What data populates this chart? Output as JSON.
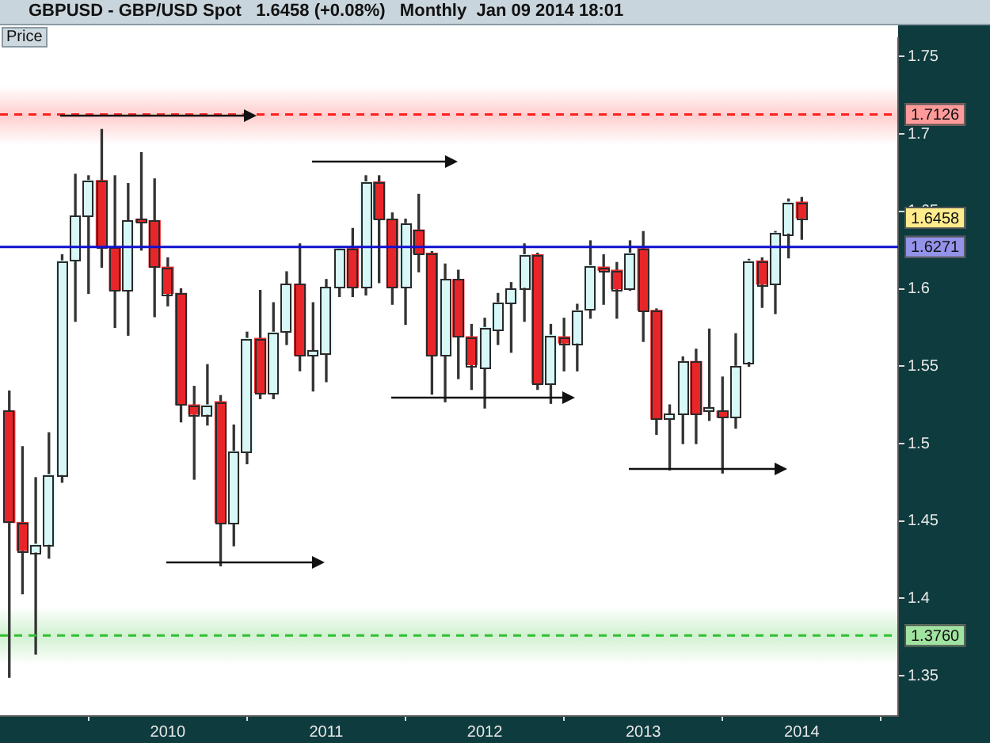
{
  "chart_data": {
    "type": "candlestick",
    "title": "GBPUSD - GBP/USD Spot",
    "subtitle": "1.6458 (+0.08%)   Monthly  Jan 09 2014 18:01",
    "x": [
      "2009-01",
      "2009-02",
      "2009-03",
      "2009-04",
      "2009-05",
      "2009-06",
      "2009-07",
      "2009-08",
      "2009-09",
      "2009-10",
      "2009-11",
      "2009-12",
      "2010-01",
      "2010-02",
      "2010-03",
      "2010-04",
      "2010-05",
      "2010-06",
      "2010-07",
      "2010-08",
      "2010-09",
      "2010-10",
      "2010-11",
      "2010-12",
      "2011-01",
      "2011-02",
      "2011-03",
      "2011-04",
      "2011-05",
      "2011-06",
      "2011-07",
      "2011-08",
      "2011-09",
      "2011-10",
      "2011-11",
      "2011-12",
      "2012-01",
      "2012-02",
      "2012-03",
      "2012-04",
      "2012-05",
      "2012-06",
      "2012-07",
      "2012-08",
      "2012-09",
      "2012-10",
      "2012-11",
      "2012-12",
      "2013-01",
      "2013-02",
      "2013-03",
      "2013-04",
      "2013-05",
      "2013-06",
      "2013-07",
      "2013-08",
      "2013-09",
      "2013-10",
      "2013-11",
      "2013-12",
      "2014-01"
    ],
    "ohlc": [
      [
        1.521,
        1.534,
        1.349,
        1.449
      ],
      [
        1.449,
        1.498,
        1.403,
        1.431
      ],
      [
        1.43,
        1.478,
        1.364,
        1.435
      ],
      [
        1.435,
        1.507,
        1.426,
        1.48
      ],
      [
        1.48,
        1.622,
        1.475,
        1.618
      ],
      [
        1.618,
        1.674,
        1.579,
        1.647
      ],
      [
        1.647,
        1.673,
        1.597,
        1.67
      ],
      [
        1.67,
        1.703,
        1.614,
        1.627
      ],
      [
        1.627,
        1.673,
        1.575,
        1.599
      ],
      [
        1.599,
        1.668,
        1.57,
        1.644
      ],
      [
        1.644,
        1.688,
        1.625,
        1.643
      ],
      [
        1.644,
        1.671,
        1.582,
        1.614
      ],
      [
        1.614,
        1.62,
        1.589,
        1.597
      ],
      [
        1.597,
        1.6,
        1.514,
        1.525
      ],
      [
        1.525,
        1.537,
        1.477,
        1.519
      ],
      [
        1.519,
        1.551,
        1.512,
        1.525
      ],
      [
        1.527,
        1.531,
        1.421,
        1.449
      ],
      [
        1.449,
        1.512,
        1.434,
        1.495
      ],
      [
        1.495,
        1.572,
        1.487,
        1.568
      ],
      [
        1.568,
        1.599,
        1.529,
        1.533
      ],
      [
        1.533,
        1.591,
        1.529,
        1.572
      ],
      [
        1.572,
        1.611,
        1.564,
        1.603
      ],
      [
        1.603,
        1.629,
        1.547,
        1.557
      ],
      [
        1.557,
        1.591,
        1.534,
        1.56
      ],
      [
        1.558,
        1.606,
        1.54,
        1.601
      ],
      [
        1.601,
        1.627,
        1.595,
        1.626
      ],
      [
        1.626,
        1.639,
        1.595,
        1.601
      ],
      [
        1.601,
        1.673,
        1.596,
        1.669
      ],
      [
        1.669,
        1.673,
        1.604,
        1.645
      ],
      [
        1.645,
        1.649,
        1.59,
        1.601
      ],
      [
        1.601,
        1.645,
        1.577,
        1.642
      ],
      [
        1.638,
        1.661,
        1.611,
        1.623
      ],
      [
        1.623,
        1.624,
        1.532,
        1.557
      ],
      [
        1.557,
        1.616,
        1.527,
        1.606
      ],
      [
        1.606,
        1.612,
        1.542,
        1.569
      ],
      [
        1.569,
        1.577,
        1.535,
        1.551
      ],
      [
        1.549,
        1.581,
        1.523,
        1.575
      ],
      [
        1.574,
        1.597,
        1.564,
        1.591
      ],
      [
        1.591,
        1.604,
        1.559,
        1.6
      ],
      [
        1.601,
        1.629,
        1.579,
        1.622
      ],
      [
        1.622,
        1.623,
        1.535,
        1.539
      ],
      [
        1.539,
        1.577,
        1.526,
        1.57
      ],
      [
        1.569,
        1.581,
        1.547,
        1.565
      ],
      [
        1.565,
        1.59,
        1.547,
        1.586
      ],
      [
        1.587,
        1.631,
        1.581,
        1.615
      ],
      [
        1.614,
        1.622,
        1.59,
        1.612
      ],
      [
        1.612,
        1.617,
        1.581,
        1.6
      ],
      [
        1.6,
        1.631,
        1.599,
        1.623
      ],
      [
        1.626,
        1.637,
        1.566,
        1.586
      ],
      [
        1.586,
        1.587,
        1.506,
        1.516
      ],
      [
        1.516,
        1.525,
        1.483,
        1.519
      ],
      [
        1.519,
        1.556,
        1.5,
        1.553
      ],
      [
        1.553,
        1.561,
        1.5,
        1.519
      ],
      [
        1.521,
        1.574,
        1.515,
        1.522
      ],
      [
        1.521,
        1.543,
        1.481,
        1.517
      ],
      [
        1.517,
        1.571,
        1.51,
        1.55
      ],
      [
        1.553,
        1.619,
        1.55,
        1.618
      ],
      [
        1.618,
        1.62,
        1.588,
        1.603
      ],
      [
        1.603,
        1.637,
        1.584,
        1.636
      ],
      [
        1.636,
        1.658,
        1.62,
        1.656
      ],
      [
        1.656,
        1.659,
        1.632,
        1.6458
      ]
    ],
    "colors": [
      "#e8262a",
      "#e8262a",
      "#d8f8f8",
      "#d8f8f8",
      "#d8f8f8",
      "#d8f8f8",
      "#d8f8f8",
      "#e8262a",
      "#e8262a",
      "#d8f8f8",
      "#e8262a",
      "#e8262a",
      "#e8262a",
      "#e8262a",
      "#e8262a",
      "#d8f8f8",
      "#e8262a",
      "#d8f8f8",
      "#d8f8f8",
      "#e8262a",
      "#d8f8f8",
      "#d8f8f8",
      "#e8262a",
      "#d8f8f8",
      "#d8f8f8",
      "#d8f8f8",
      "#e8262a",
      "#d8f8f8",
      "#e8262a",
      "#e8262a",
      "#d8f8f8",
      "#e8262a",
      "#e8262a",
      "#d8f8f8",
      "#e8262a",
      "#e8262a",
      "#d8f8f8",
      "#d8f8f8",
      "#d8f8f8",
      "#d8f8f8",
      "#e8262a",
      "#d8f8f8",
      "#e8262a",
      "#d8f8f8",
      "#d8f8f8",
      "#e8262a",
      "#e8262a",
      "#d8f8f8",
      "#e8262a",
      "#e8262a",
      "#d8f8f8",
      "#d8f8f8",
      "#e8262a",
      "#d8f8f8",
      "#e8262a",
      "#d8f8f8",
      "#d8f8f8",
      "#e8262a",
      "#d8f8f8",
      "#d8f8f8",
      "#e8262a"
    ],
    "xlim": [
      "2008-12-10",
      "2014-08-10"
    ],
    "xticks": [
      "2010",
      "2011",
      "2012",
      "2013",
      "2014"
    ],
    "ylim": [
      1.324,
      1.762
    ],
    "yticks": [
      1.35,
      1.4,
      1.45,
      1.5,
      1.55,
      1.6,
      1.65,
      1.7,
      1.75
    ],
    "ref_lines": [
      {
        "axis": "y",
        "value": 1.7126,
        "label": "1.7126",
        "color": "#ff2020",
        "line_style": "dashed"
      },
      {
        "axis": "y",
        "value": 1.6271,
        "label": "1.6271",
        "color": "#1010d0",
        "line_style": "solid"
      },
      {
        "axis": "y",
        "value": 1.376,
        "label": "1.3760",
        "color": "#30c030",
        "line_style": "dashed"
      }
    ],
    "bands": [
      {
        "axis": "y",
        "from": 1.693,
        "to": 1.731,
        "color": "#ff2020"
      },
      {
        "axis": "y",
        "from": 1.357,
        "to": 1.395,
        "color": "#30c030"
      }
    ],
    "annotations": [
      "Price",
      "1.6458"
    ],
    "grid": false,
    "legend": false
  }
}
